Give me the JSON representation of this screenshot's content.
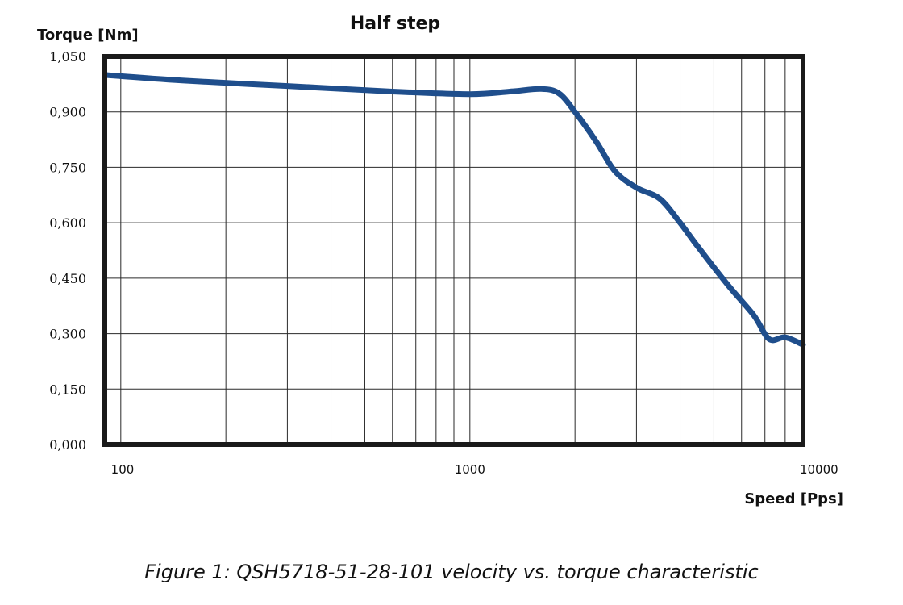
{
  "chart_data": {
    "type": "line",
    "title": "Half step",
    "ylabel": "Torque [Nm]",
    "xlabel": "Speed [Pps]",
    "x_scale": "log",
    "xlim": [
      90,
      9000
    ],
    "ylim": [
      0,
      1.05
    ],
    "x_tick_values": [
      100,
      1000,
      10000
    ],
    "x_tick_labels": [
      "100",
      "1000",
      "10000"
    ],
    "y_tick_values": [
      0,
      0.15,
      0.3,
      0.45,
      0.6,
      0.75,
      0.9,
      1.05
    ],
    "y_tick_labels": [
      "0,000",
      "0,150",
      "0,300",
      "0,450",
      "0,600",
      "0,750",
      "0,900",
      "1,050"
    ],
    "grid": true,
    "line_color": "#1f4e8c",
    "series": [
      {
        "x": [
          90,
          150,
          300,
          600,
          1000,
          1300,
          1600,
          1800,
          2000,
          2300,
          2600,
          3000,
          3500,
          4000,
          4500,
          5500,
          6500,
          7200,
          8000,
          9000
        ],
        "y": [
          1.0,
          0.985,
          0.97,
          0.955,
          0.948,
          0.955,
          0.962,
          0.95,
          0.9,
          0.82,
          0.74,
          0.695,
          0.665,
          0.6,
          0.535,
          0.43,
          0.35,
          0.285,
          0.29,
          0.27
        ]
      }
    ]
  },
  "caption": "Figure 1: QSH5718-51-28-101 velocity vs. torque characteristic"
}
